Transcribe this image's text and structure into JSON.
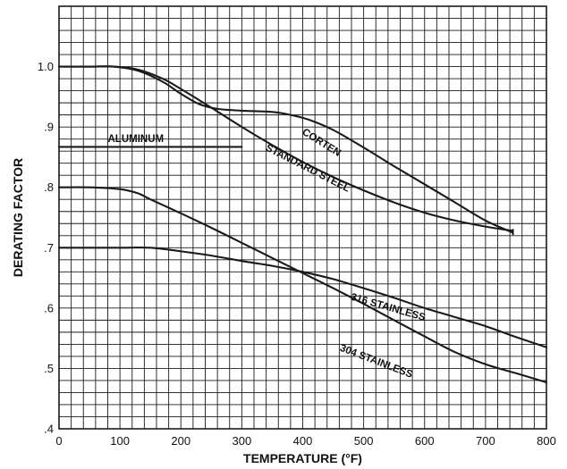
{
  "chart_data": {
    "type": "line",
    "xlabel": "TEMPERATURE (°F)",
    "ylabel": "DERATING FACTOR",
    "xlim": [
      0,
      800
    ],
    "ylim": [
      0.4,
      1.1
    ],
    "x_ticks": [
      0,
      100,
      200,
      300,
      400,
      500,
      600,
      700,
      800
    ],
    "x_tick_labels": [
      "0",
      "100",
      "200",
      "300",
      "400",
      "500",
      "600",
      "700",
      "800"
    ],
    "y_ticks": [
      0.4,
      0.5,
      0.6,
      0.7,
      0.8,
      0.9,
      1.0
    ],
    "y_tick_labels": [
      ".4",
      ".5",
      ".6",
      ".7",
      ".8",
      ".9",
      "1.0"
    ],
    "grid": true,
    "series": [
      {
        "name": "ALUMINUM",
        "x": [
          0,
          300
        ],
        "y": [
          0.867,
          0.867
        ]
      },
      {
        "name": "CORTEN",
        "x": [
          0,
          50,
          90,
          130,
          170,
          200,
          230,
          260,
          300,
          350,
          380,
          410,
          450,
          500,
          550,
          600,
          650,
          700,
          745
        ],
        "y": [
          1.0,
          1.0,
          1.0,
          0.993,
          0.975,
          0.955,
          0.938,
          0.93,
          0.927,
          0.925,
          0.92,
          0.912,
          0.895,
          0.866,
          0.835,
          0.805,
          0.775,
          0.745,
          0.725
        ]
      },
      {
        "name": "STANDARD STEEL",
        "x": [
          0,
          50,
          90,
          130,
          170,
          200,
          250,
          300,
          350,
          400,
          450,
          500,
          550,
          600,
          650,
          700,
          745
        ],
        "y": [
          1.0,
          1.0,
          1.0,
          0.995,
          0.98,
          0.963,
          0.932,
          0.9,
          0.87,
          0.842,
          0.817,
          0.795,
          0.775,
          0.758,
          0.745,
          0.735,
          0.728
        ]
      },
      {
        "name": "316 STAINLESS",
        "x": [
          0,
          50,
          100,
          150,
          200,
          250,
          300,
          350,
          400,
          450,
          500,
          550,
          600,
          650,
          700,
          750,
          800
        ],
        "y": [
          0.7,
          0.7,
          0.7,
          0.7,
          0.694,
          0.687,
          0.678,
          0.67,
          0.66,
          0.648,
          0.633,
          0.617,
          0.6,
          0.585,
          0.57,
          0.552,
          0.535
        ]
      },
      {
        "name": "304 STAINLESS",
        "x": [
          0,
          50,
          100,
          130,
          150,
          200,
          250,
          300,
          350,
          400,
          450,
          500,
          550,
          600,
          650,
          700,
          750,
          800
        ],
        "y": [
          0.8,
          0.8,
          0.797,
          0.79,
          0.78,
          0.757,
          0.733,
          0.708,
          0.683,
          0.658,
          0.633,
          0.607,
          0.58,
          0.553,
          0.527,
          0.507,
          0.492,
          0.477
        ]
      }
    ]
  }
}
